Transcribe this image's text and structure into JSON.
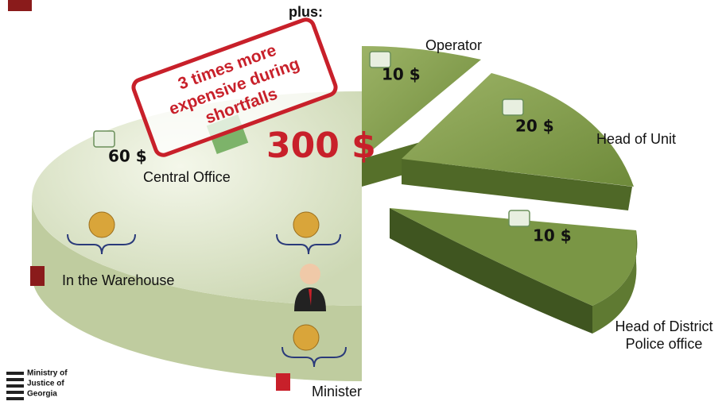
{
  "header": {
    "text": "plus:"
  },
  "stamp": {
    "lines": [
      "3 times more",
      "expensive during",
      "shortfalls"
    ]
  },
  "total": "300 $",
  "central": {
    "label": "Central Office",
    "amount": "60 $"
  },
  "segments": [
    {
      "label_lines": [
        "Operator"
      ],
      "amount": "10 $"
    },
    {
      "label_lines": [
        "Head of Unit"
      ],
      "amount": "20 $"
    },
    {
      "label_lines": [
        "Head of District",
        "Police office"
      ],
      "amount": "10 $"
    }
  ],
  "warehouse": {
    "label": "In the Warehouse"
  },
  "minister": {
    "label": "Minister"
  },
  "logo": {
    "lines": [
      "Ministry of",
      "Justice of",
      "Georgia"
    ]
  }
}
